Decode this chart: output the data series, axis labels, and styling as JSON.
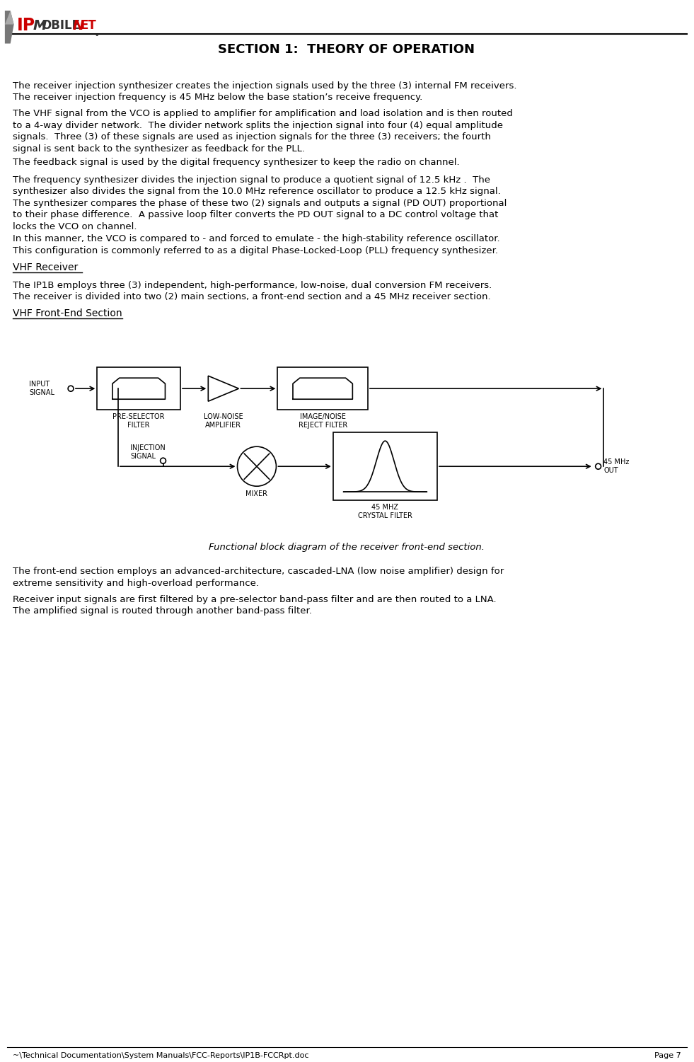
{
  "title": "SECTION 1:  THEORY OF OPERATION",
  "footer_left": "~\\Technical Documentation\\System Manuals\\FCC-Reports\\IP1B-FCCRpt.doc",
  "footer_right": "Page 7",
  "paragraphs": [
    "The receiver injection synthesizer creates the injection signals used by the three (3) internal FM receivers.\nThe receiver injection frequency is 45 MHz below the base station’s receive frequency.",
    "The VHF signal from the VCO is applied to amplifier for amplification and load isolation and is then routed\nto a 4-way divider network.  The divider network splits the injection signal into four (4) equal amplitude\nsignals.  Three (3) of these signals are used as injection signals for the three (3) receivers; the fourth\nsignal is sent back to the synthesizer as feedback for the PLL.",
    "The feedback signal is used by the digital frequency synthesizer to keep the radio on channel.",
    "The frequency synthesizer divides the injection signal to produce a quotient signal of 12.5 kHz .  The\nsynthesizer also divides the signal from the 10.0 MHz reference oscillator to produce a 12.5 kHz signal.\nThe synthesizer compares the phase of these two (2) signals and outputs a signal (PD OUT) proportional\nto their phase difference.  A passive loop filter converts the PD OUT signal to a DC control voltage that\nlocks the VCO on channel.",
    "In this manner, the VCO is compared to - and forced to emulate - the high-stability reference oscillator.\nThis configuration is commonly referred to as a digital Phase-Locked-Loop (PLL) frequency synthesizer."
  ],
  "vhf_receiver_heading": "VHF Receiver",
  "vhf_receiver_para": "The IP1B employs three (3) independent, high-performance, low-noise, dual conversion FM receivers.\nThe receiver is divided into two (2) main sections, a front-end section and a 45 MHz receiver section.",
  "vhf_frontend_heading": "VHF Front-End Section",
  "diagram_caption": "Functional block diagram of the receiver front-end section.",
  "para_after_diagram1": "The front-end section employs an advanced-architecture, cascaded-LNA (low noise amplifier) design for\nextreme sensitivity and high-overload performance.",
  "para_after_diagram2": "Receiver input signals are first filtered by a pre-selector band-pass filter and are then routed to a LNA.\nThe amplified signal is routed through another band-pass filter.",
  "bg_color": "#ffffff",
  "text_color": "#000000",
  "font_size_body": 9.5,
  "font_size_title": 13,
  "font_size_heading": 10,
  "font_size_footer": 8
}
